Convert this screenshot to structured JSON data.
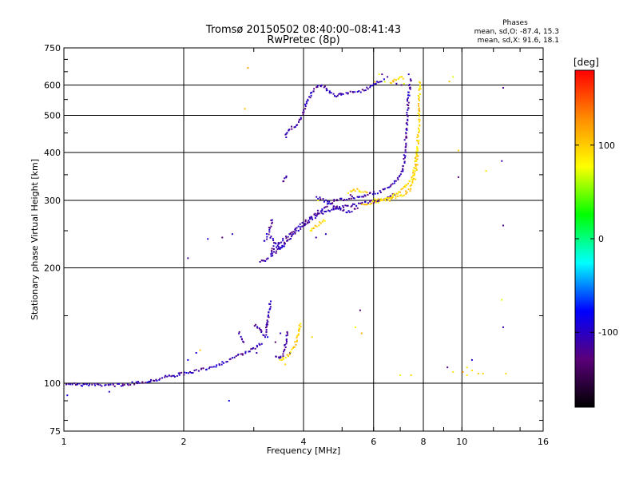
{
  "chart_data": {
    "type": "scatter",
    "title": "Tromsø 20150502 08:40:00–08:41:43",
    "subtitle": "RwPretec (8p)",
    "xlabel": "Frequency [MHz]",
    "ylabel": "Stationary phase Virtual Height [km]",
    "xscale": "log",
    "yscale": "log",
    "xlim": [
      1,
      16
    ],
    "ylim": [
      75,
      750
    ],
    "xticks": [
      1,
      2,
      4,
      6,
      8,
      10,
      16
    ],
    "yticks": [
      75,
      100,
      200,
      300,
      400,
      500,
      600,
      750
    ],
    "grid": true,
    "stats": {
      "heading": "Phases",
      "o_line": "mean, sd,O: -87.4, 15.3",
      "x_line": "mean, sd,X:  91.6, 18.1"
    },
    "colorbar": {
      "label": "[deg]",
      "range": [
        -180,
        180
      ],
      "ticks": [
        100,
        0,
        -100
      ],
      "colors": [
        "#000000",
        "#5a007a",
        "#0000ff",
        "#00ffff",
        "#00ff00",
        "#ffff00",
        "#ff8c00",
        "#ff0000"
      ]
    },
    "series": [
      {
        "mode": "O",
        "phase": -110,
        "traces": [
          [
            [
              1.02,
              100
            ],
            [
              1.1,
              99
            ],
            [
              1.2,
              99
            ],
            [
              1.3,
              99
            ],
            [
              1.4,
              99
            ],
            [
              1.5,
              100
            ],
            [
              1.6,
              101
            ],
            [
              1.7,
              102
            ],
            [
              1.8,
              104
            ],
            [
              1.9,
              105
            ],
            [
              2.0,
              106
            ],
            [
              2.2,
              108
            ],
            [
              2.4,
              111
            ],
            [
              2.6,
              115
            ],
            [
              2.8,
              119
            ],
            [
              3.0,
              123
            ],
            [
              3.15,
              128
            ]
          ],
          [
            [
              3.0,
              142
            ],
            [
              3.1,
              139
            ],
            [
              3.15,
              135
            ],
            [
              3.2,
              133
            ],
            [
              3.24,
              140
            ],
            [
              3.27,
              150
            ],
            [
              3.3,
              165
            ]
          ],
          [
            [
              2.75,
              135
            ],
            [
              2.8,
              130
            ],
            [
              2.85,
              127
            ]
          ],
          [
            [
              3.4,
              118
            ],
            [
              3.5,
              116
            ],
            [
              3.58,
              120
            ],
            [
              3.62,
              130
            ],
            [
              3.64,
              138
            ]
          ],
          [
            [
              3.1,
              208
            ],
            [
              3.2,
              210
            ],
            [
              3.3,
              214
            ],
            [
              3.4,
              220
            ],
            [
              3.5,
              226
            ],
            [
              3.6,
              232
            ],
            [
              3.7,
              240
            ],
            [
              3.8,
              247
            ],
            [
              3.9,
              252
            ],
            [
              4.0,
              258
            ],
            [
              4.1,
              263
            ],
            [
              4.2,
              268
            ],
            [
              4.3,
              272
            ],
            [
              4.4,
              276
            ],
            [
              4.5,
              279
            ],
            [
              4.6,
              282
            ],
            [
              4.7,
              284
            ],
            [
              4.8,
              286
            ],
            [
              5.0,
              288
            ],
            [
              5.2,
              290
            ],
            [
              5.4,
              292
            ],
            [
              5.6,
              294
            ],
            [
              5.8,
              296
            ],
            [
              6.0,
              298
            ],
            [
              6.2,
              300
            ],
            [
              6.4,
              303
            ],
            [
              6.6,
              307
            ],
            [
              6.8,
              312
            ]
          ],
          [
            [
              3.3,
              218
            ],
            [
              3.4,
              228
            ],
            [
              3.6,
              238
            ],
            [
              3.8,
              252
            ],
            [
              4.0,
              262
            ],
            [
              4.2,
              272
            ],
            [
              4.4,
              282
            ],
            [
              4.6,
              292
            ],
            [
              4.8,
              300
            ],
            [
              5.0,
              302
            ],
            [
              5.4,
              306
            ],
            [
              5.8,
              310
            ],
            [
              6.2,
              316
            ],
            [
              6.6,
              326
            ],
            [
              6.9,
              340
            ],
            [
              7.1,
              360
            ],
            [
              7.2,
              400
            ],
            [
              7.25,
              460
            ],
            [
              7.3,
              520
            ],
            [
              7.35,
              560
            ],
            [
              7.4,
              600
            ],
            [
              7.45,
              630
            ]
          ],
          [
            [
              3.3,
              240
            ],
            [
              3.4,
              232
            ],
            [
              3.5,
              225
            ],
            [
              3.6,
              232
            ]
          ],
          [
            [
              3.2,
              235
            ],
            [
              3.3,
              255
            ],
            [
              3.35,
              270
            ]
          ],
          [
            [
              3.55,
              335
            ],
            [
              3.6,
              340
            ],
            [
              3.65,
              350
            ]
          ],
          [
            [
              3.6,
              440
            ],
            [
              3.65,
              450
            ],
            [
              3.7,
              460
            ],
            [
              3.8,
              470
            ],
            [
              3.9,
              480
            ],
            [
              4.0,
              510
            ],
            [
              4.1,
              550
            ],
            [
              4.2,
              575
            ],
            [
              4.3,
              590
            ],
            [
              4.4,
              600
            ],
            [
              4.5,
              595
            ],
            [
              4.6,
              582
            ],
            [
              4.7,
              570
            ],
            [
              4.8,
              562
            ],
            [
              4.9,
              565
            ],
            [
              5.0,
              570
            ],
            [
              5.2,
              575
            ],
            [
              5.4,
              575
            ],
            [
              5.6,
              580
            ],
            [
              5.8,
              590
            ],
            [
              6.0,
              600
            ],
            [
              6.2,
              610
            ],
            [
              6.4,
              620
            ]
          ],
          [
            [
              4.3,
              305
            ],
            [
              4.5,
              300
            ],
            [
              4.7,
              292
            ],
            [
              4.9,
              288
            ],
            [
              5.1,
              280
            ],
            [
              5.3,
              282
            ],
            [
              5.5,
              286
            ]
          ]
        ],
        "scatter": [
          [
            1.65,
            101
          ],
          [
            1.9,
            104
          ],
          [
            2.05,
            115
          ],
          [
            2.15,
            120
          ],
          [
            2.3,
            238
          ],
          [
            2.5,
            240
          ],
          [
            2.65,
            245
          ],
          [
            2.6,
            90
          ],
          [
            3.25,
            132
          ],
          [
            3.05,
            120
          ],
          [
            3.4,
            128
          ],
          [
            3.5,
            135
          ],
          [
            2.05,
            212
          ],
          [
            3.7,
            120
          ],
          [
            4.05,
            260
          ],
          [
            4.3,
            240
          ],
          [
            4.55,
            245
          ],
          [
            4.85,
            300
          ],
          [
            5.25,
            310
          ],
          [
            5.55,
            155
          ],
          [
            6.3,
            640
          ],
          [
            6.5,
            630
          ],
          [
            6.85,
            605
          ],
          [
            7.05,
            600
          ],
          [
            7.35,
            640
          ],
          [
            9.8,
            345
          ],
          [
            10.6,
            115
          ],
          [
            12.7,
            590
          ],
          [
            12.7,
            258
          ],
          [
            12.6,
            380
          ],
          [
            12.7,
            140
          ],
          [
            9.2,
            110
          ],
          [
            1.02,
            93
          ],
          [
            1.3,
            95
          ]
        ]
      },
      {
        "mode": "X",
        "phase": 95,
        "traces": [
          [
            [
              4.15,
              250
            ],
            [
              4.25,
              255
            ],
            [
              4.35,
              260
            ],
            [
              4.45,
              263
            ],
            [
              4.55,
              268
            ]
          ],
          [
            [
              5.6,
              292
            ],
            [
              5.8,
              294
            ],
            [
              6.0,
              296
            ],
            [
              6.2,
              298
            ],
            [
              6.5,
              300
            ],
            [
              6.8,
              305
            ],
            [
              7.1,
              310
            ],
            [
              7.4,
              320
            ],
            [
              7.6,
              340
            ],
            [
              7.7,
              370
            ],
            [
              7.75,
              420
            ],
            [
              7.8,
              480
            ],
            [
              7.82,
              560
            ],
            [
              7.85,
              620
            ]
          ],
          [
            [
              6.0,
              300
            ],
            [
              6.3,
              302
            ],
            [
              6.6,
              306
            ],
            [
              6.9,
              314
            ],
            [
              7.2,
              325
            ],
            [
              7.45,
              340
            ],
            [
              7.6,
              360
            ],
            [
              7.7,
              400
            ]
          ],
          [
            [
              5.2,
              315
            ],
            [
              5.3,
              320
            ],
            [
              5.4,
              320
            ],
            [
              5.6,
              318
            ],
            [
              5.8,
              316
            ]
          ],
          [
            [
              3.5,
              115
            ],
            [
              3.6,
              117
            ],
            [
              3.7,
              120
            ],
            [
              3.8,
              125
            ],
            [
              3.85,
              130
            ],
            [
              3.9,
              140
            ],
            [
              3.95,
              145
            ]
          ],
          [
            [
              6.6,
              610
            ],
            [
              6.8,
              615
            ],
            [
              7.0,
              625
            ],
            [
              7.2,
              630
            ]
          ]
        ],
        "scatter": [
          [
            4.2,
            132
          ],
          [
            4.35,
            300
          ],
          [
            3.6,
            112
          ],
          [
            5.4,
            140
          ],
          [
            5.6,
            135
          ],
          [
            6.2,
            640
          ],
          [
            6.05,
            612
          ],
          [
            7.15,
            605
          ],
          [
            6.4,
            612
          ],
          [
            2.9,
            665
          ],
          [
            7.0,
            105
          ],
          [
            7.45,
            105
          ],
          [
            9.3,
            613
          ],
          [
            11.0,
            106
          ],
          [
            11.3,
            106
          ],
          [
            10.6,
            108
          ],
          [
            10.3,
            105
          ],
          [
            12.6,
            165
          ],
          [
            12.9,
            106
          ],
          [
            10.05,
            107
          ],
          [
            9.5,
            107
          ],
          [
            10.3,
            110
          ],
          [
            2.85,
            520
          ],
          [
            2.2,
            122
          ],
          [
            11.5,
            358
          ],
          [
            9.5,
            630
          ],
          [
            9.8,
            405
          ]
        ]
      }
    ]
  }
}
